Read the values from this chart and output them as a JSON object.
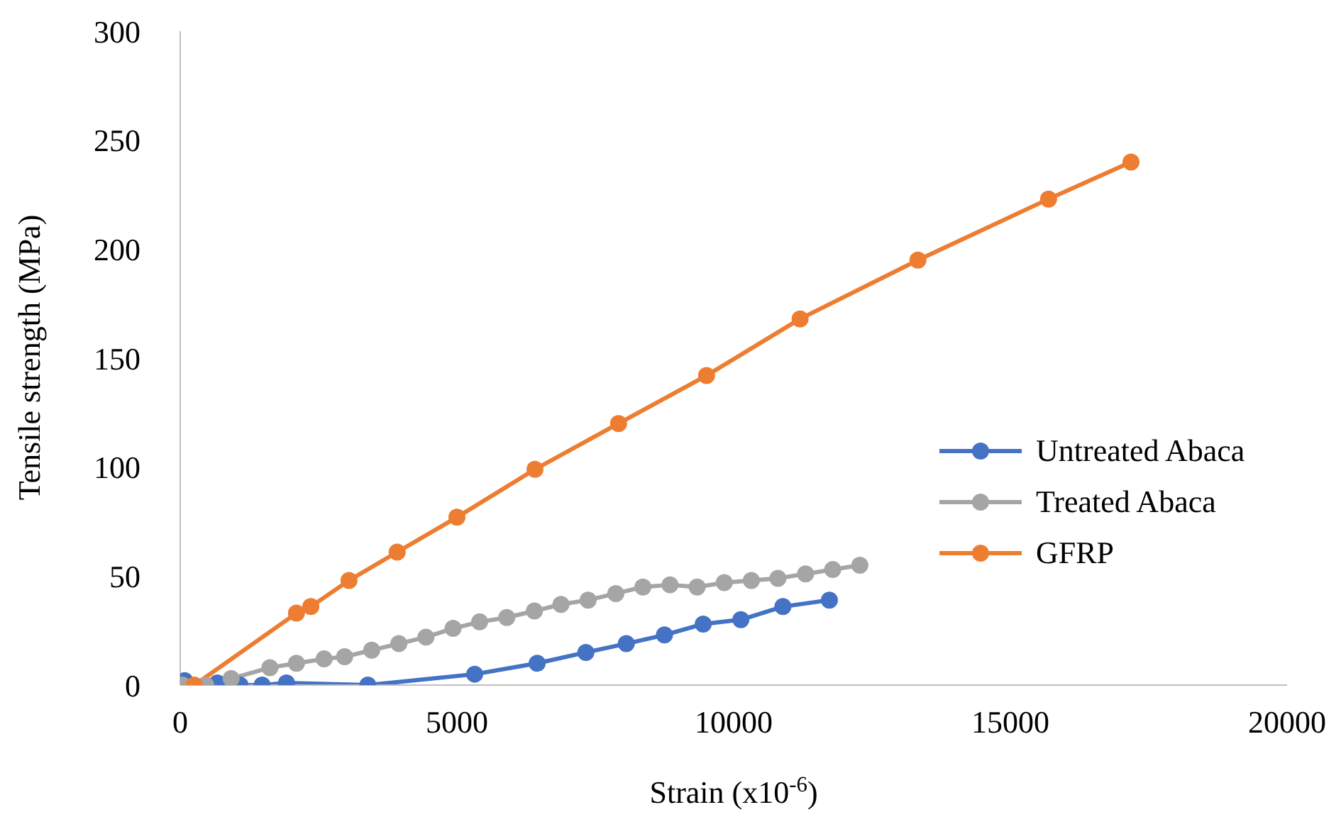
{
  "chart_data": {
    "type": "line",
    "xlabel": "Strain (x10$^{-6}$)",
    "ylabel": "Tensile strength (MPa)",
    "xlim": [
      0,
      20000
    ],
    "xticks": [
      0,
      5000,
      10000,
      15000,
      20000
    ],
    "ylim": [
      0,
      300
    ],
    "yticks": [
      0,
      50,
      100,
      150,
      200,
      250,
      300
    ],
    "grid": false,
    "legend": "right",
    "marker": "circle",
    "line_style": "solid",
    "series": [
      {
        "name": "Untreated Abaca",
        "color": "#4472c4",
        "x": [
          80,
          670,
          1080,
          1480,
          1920,
          3390,
          5320,
          6450,
          7330,
          8060,
          8750,
          9450,
          10130,
          10890,
          11730
        ],
        "values": [
          2,
          1,
          0,
          0,
          1,
          0,
          5,
          10,
          15,
          19,
          23,
          28,
          30,
          36,
          39
        ]
      },
      {
        "name": "Treated Abaca",
        "color": "#a5a5a5",
        "x": [
          40,
          460,
          920,
          1620,
          2100,
          2600,
          2970,
          3460,
          3950,
          4440,
          4930,
          5410,
          5900,
          6400,
          6880,
          7370,
          7870,
          8360,
          8850,
          9340,
          9830,
          10320,
          10800,
          11300,
          11790,
          12280
        ],
        "values": [
          0,
          0,
          3,
          8,
          10,
          12,
          13,
          16,
          19,
          22,
          26,
          29,
          31,
          34,
          37,
          39,
          42,
          45,
          46,
          45,
          47,
          48,
          49,
          51,
          53,
          55
        ]
      },
      {
        "name": "GFRP",
        "color": "#ed7d31",
        "x": [
          256,
          2100,
          2360,
          3050,
          3920,
          5000,
          6410,
          7920,
          9510,
          11200,
          13330,
          15690,
          17180
        ],
        "values": [
          0,
          33,
          36,
          48,
          61,
          77,
          99,
          120,
          142,
          168,
          195,
          223,
          240
        ]
      }
    ]
  }
}
